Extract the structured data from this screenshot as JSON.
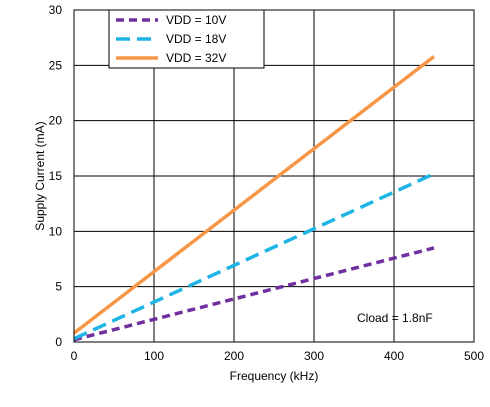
{
  "chart_data": {
    "type": "line",
    "xlabel": "Frequency (kHz)",
    "ylabel": "Supply Current (mA)",
    "xlim": [
      0,
      500
    ],
    "ylim": [
      0,
      30
    ],
    "xticks": [
      0,
      100,
      200,
      300,
      400,
      500
    ],
    "yticks": [
      0,
      5,
      10,
      15,
      20,
      25,
      30
    ],
    "grid": true,
    "legend_position": "top-left",
    "annotation": "Cload = 1.8nF",
    "series": [
      {
        "name": "VDD = 10V",
        "color": "#7030A0",
        "dash": "dashed",
        "x": [
          0,
          450
        ],
        "y": [
          0.2,
          8.5
        ]
      },
      {
        "name": "18V",
        "color": "#1FB4E6",
        "dash": "long-dashed",
        "x": [
          0,
          450
        ],
        "y": [
          0.3,
          15.2
        ],
        "label": "VDD = 18V"
      },
      {
        "name": "32V",
        "color": "#F79646",
        "dash": "solid",
        "x": [
          0,
          450
        ],
        "y": [
          0.8,
          25.8
        ],
        "label": "VDD = 32V"
      }
    ]
  }
}
